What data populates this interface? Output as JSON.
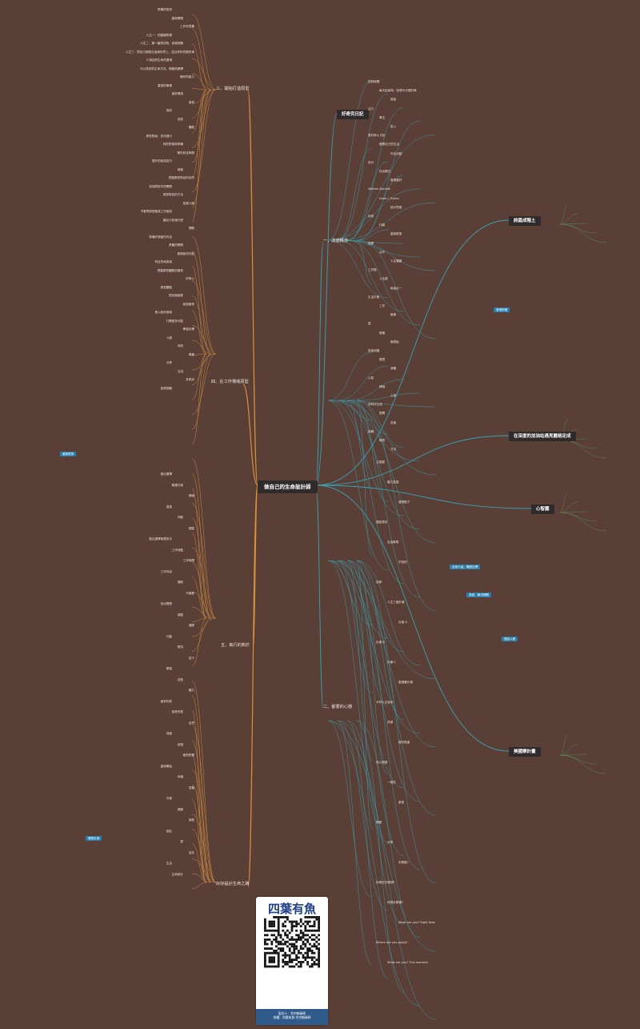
{
  "center": "做自己的生命設計師",
  "branches": {
    "l1": "三、開始打造原型",
    "l2": "四、在工作場域原型",
    "l3": "五、執行的對於",
    "l4": "好好設計生命之路",
    "r1": "一、改變概念",
    "r2": "二、都要的心態",
    "r3": "好奇究日記",
    "r4": "詩篇成階土",
    "r5": "在深度的加油站遇見麗格定成",
    "r6": "心智圖",
    "r7": "美國樂計畫"
  },
  "chips": {
    "c1": "發現熱情",
    "c2": "自我介紹、職涯目標",
    "c3": "穿越、解決問題",
    "c4": "連結人脈",
    "c5": "重新框架",
    "c6": "確認計畫"
  },
  "left_labels": [
    "熱情的嘗試",
    "重新問題",
    "工作的意義",
    "人生一：把握最熱情",
    "人生二：擁一番想法與，而被挑戰",
    "人生三：把自己都能在這個世界上，並且有所貢獻的事",
    "5 個目前生命的選項",
    "可以嘗試的生命方向、興趣與選擇",
    "擁有的能力",
    "重視的事情",
    "當前環境",
    "原型",
    "嘗試",
    "訪談",
    "體驗",
    "原型對話：如何進行",
    "拜訪對象與準備",
    "預先約定時間",
    "更好的談話技巧",
    "致謝",
    "把握原型對話的目的",
    "找到原型中的問題",
    "原型對話的方法",
    "拓展人脈",
    "不要把原型當成工作面試",
    "讓自己知道什麼",
    "問題",
    "準備好適當的內容",
    "具體的問題",
    "發現新的可能",
    "有目的地探索",
    "把握原型體驗的機會",
    "好奇心",
    "原型體驗",
    "嘗試做做看",
    "創造機會",
    "進入新的領域",
    "打開更多可能",
    "學習目標",
    "人脈",
    "資訊",
    "專業",
    "分享",
    "交流",
    "多嘗試",
    "接受挑戰"
  ],
  "left_labels_2": [
    "做出選擇",
    "篩選方案",
    "情緒",
    "直覺",
    "判斷",
    "經驗",
    "做出選擇後要放手",
    "工作地點",
    "工作時間",
    "工作內容",
    "喜歡",
    "不喜歡",
    "找出問題",
    "調整",
    "適應",
    "行動",
    "堅持",
    "放下",
    "學習",
    "成長",
    "壓力",
    "面對失敗",
    "接受失敗",
    "反思",
    "改變",
    "試錯",
    "面對恐懼",
    "重新開始",
    "幸福",
    "意義",
    "平衡",
    "健康",
    "家庭",
    "朋友",
    "愛",
    "信念",
    "生活",
    "生命設計"
  ],
  "right_labels": [
    "記錄時間",
    "每天結束時，回想今天做的事",
    "能量",
    "活力",
    "專注",
    "投入",
    "寫好奇心日記",
    "觀察自己的生活",
    "列出活動",
    "評分",
    "找出模式",
    "發現喜好",
    "William Burnett",
    "Dave J. Evans",
    "設計思維",
    "好奇",
    "行動",
    "重新框架",
    "覺察",
    "合作",
    "人生羅盤",
    "工作觀",
    "人生觀",
    "兩者合一",
    "生活平衡",
    "工作",
    "娛樂",
    "愛",
    "健康",
    "儀表板",
    "能量地圖",
    "冒險",
    "身體",
    "心智",
    "情緒",
    "心靈",
    "好時光日誌",
    "提問",
    "答案",
    "挑戰",
    "機會",
    "方向"
  ],
  "right_labels_2": [
    "心智圖",
    "腦力激盪",
    "發想點子",
    "連結想法",
    "自由聯想",
    "不批判",
    "延伸",
    "人生三個計畫",
    "計畫 A",
    "計畫 B",
    "計畫 C",
    "奧德賽計畫",
    "不同人生版本",
    "資源",
    "喜好程度",
    "信心程度",
    "一致性",
    "原型",
    "問題",
    "分享",
    "你是誰?",
    "你現在在哪裡?",
    "你想去哪裡?",
    "What are you? Right Now.",
    "Where are you going?",
    "What are you? This moment."
  ],
  "qr": {
    "title": "四葉有魚",
    "footer_line1": "製作人：余宗翰碩師",
    "footer_line2": "授權：四葉有魚·余宗翰碩師"
  }
}
